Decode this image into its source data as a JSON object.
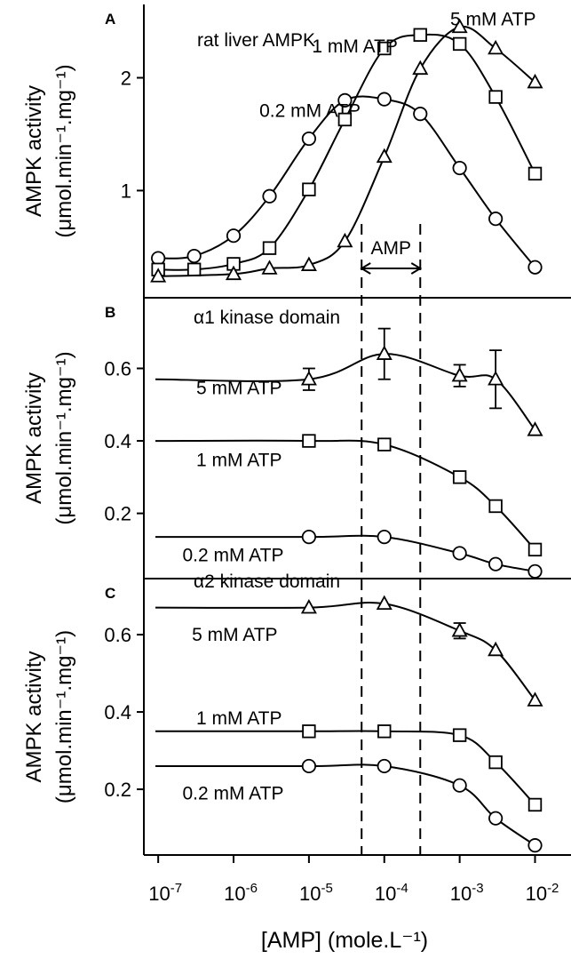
{
  "chart_data": [
    {
      "type": "scatter",
      "panel": "A",
      "title": "rat liver AMPK",
      "ylabel_line1": "AMPK activity",
      "ylabel_line2": "(μmol.min⁻¹.mg⁻¹)",
      "xscale": "log",
      "xlim": [
        7e-08,
        0.03
      ],
      "ylim": [
        0.05,
        2.65
      ],
      "yticks": [
        1,
        2
      ],
      "ytick_labels": [
        "1",
        "2"
      ],
      "amp_range_label": "AMP",
      "amp_range": [
        5e-05,
        0.0003
      ],
      "series": [
        {
          "name": "0.2 mM ATP",
          "marker": "circle",
          "x": [
            1e-07,
            3e-07,
            1e-06,
            3e-06,
            1e-05,
            3e-05,
            0.0001,
            0.0003,
            0.001,
            0.003,
            0.01
          ],
          "y": [
            0.4,
            0.42,
            0.6,
            0.95,
            1.46,
            1.8,
            1.81,
            1.68,
            1.2,
            0.75,
            0.32
          ],
          "label_anchor": [
            2.2e-06,
            1.71
          ]
        },
        {
          "name": "1 mM ATP",
          "marker": "square",
          "x": [
            1e-07,
            3e-07,
            1e-06,
            3e-06,
            1e-05,
            3e-05,
            0.0001,
            0.0003,
            0.001,
            0.003,
            0.01
          ],
          "y": [
            0.3,
            0.3,
            0.35,
            0.49,
            1.01,
            1.63,
            2.26,
            2.38,
            2.3,
            1.83,
            1.15
          ],
          "label_anchor": [
            1.1e-05,
            2.28
          ]
        },
        {
          "name": "5 mM ATP",
          "marker": "triangle",
          "x": [
            1e-07,
            1e-06,
            3e-06,
            1e-05,
            3e-05,
            0.0001,
            0.0003,
            0.001,
            0.003,
            0.01
          ],
          "y": [
            0.24,
            0.26,
            0.31,
            0.34,
            0.55,
            1.3,
            2.08,
            2.45,
            2.26,
            1.96
          ],
          "label_anchor": [
            0.00075,
            2.52
          ]
        }
      ]
    },
    {
      "type": "scatter",
      "panel": "B",
      "title": "α1 kinase domain",
      "ylabel_line1": "AMPK activity",
      "ylabel_line2": "(μmol.min⁻¹.mg⁻¹)",
      "xscale": "log",
      "xlim": [
        7e-08,
        0.03
      ],
      "ylim": [
        0.02,
        0.795
      ],
      "yticks": [
        0.2,
        0.4,
        0.6
      ],
      "ytick_labels": [
        "0.2",
        "0.4",
        "0.6"
      ],
      "series": [
        {
          "name": "5 mM ATP",
          "marker": "triangle",
          "x": [
            1e-05,
            0.0001,
            0.001,
            0.003,
            0.01
          ],
          "y": [
            0.57,
            0.64,
            0.58,
            0.57,
            0.43
          ],
          "err": [
            0.03,
            0.07,
            0.03,
            0.08,
            0
          ],
          "label_anchor": [
            3.2e-07,
            0.546
          ]
        },
        {
          "name": "1 mM ATP",
          "marker": "square",
          "x": [
            1e-05,
            0.0001,
            0.001,
            0.003,
            0.01
          ],
          "y": [
            0.4,
            0.39,
            0.3,
            0.22,
            0.1
          ],
          "label_anchor": [
            3.2e-07,
            0.348
          ]
        },
        {
          "name": "0.2 mM ATP",
          "marker": "circle",
          "x": [
            1e-05,
            0.0001,
            0.001,
            0.003,
            0.01
          ],
          "y": [
            0.135,
            0.135,
            0.09,
            0.06,
            0.04
          ],
          "label_anchor": [
            2.1e-07,
            0.085
          ]
        }
      ]
    },
    {
      "type": "scatter",
      "panel": "C",
      "title": "α2 kinase domain",
      "ylabel_line1": "AMPK activity",
      "ylabel_line2": "(μmol.min⁻¹.mg⁻¹)",
      "xlabel": "[AMP] (mole.L⁻¹)",
      "xscale": "log",
      "xlim": [
        7e-08,
        0.03
      ],
      "ylim": [
        0.03,
        0.745
      ],
      "yticks": [
        0.2,
        0.4,
        0.6
      ],
      "ytick_labels": [
        "0.2",
        "0.4",
        "0.6"
      ],
      "xticks": [
        1e-07,
        1e-06,
        1e-05,
        0.0001,
        0.001,
        0.01
      ],
      "xtick_base": "10",
      "xtick_exponents": [
        "-7",
        "-6",
        "-5",
        "-4",
        "-3",
        "-2"
      ],
      "series": [
        {
          "name": "5 mM ATP",
          "marker": "triangle",
          "x": [
            1e-05,
            0.0001,
            0.001,
            0.003,
            0.01
          ],
          "y": [
            0.67,
            0.68,
            0.61,
            0.56,
            0.43
          ],
          "err": [
            0,
            0,
            0.02,
            0,
            0
          ],
          "label_anchor": [
            2.8e-07,
            0.6
          ]
        },
        {
          "name": "1 mM ATP",
          "marker": "square",
          "x": [
            1e-05,
            0.0001,
            0.001,
            0.003,
            0.01
          ],
          "y": [
            0.35,
            0.35,
            0.34,
            0.27,
            0.16
          ],
          "label_anchor": [
            3.2e-07,
            0.384
          ]
        },
        {
          "name": "0.2 mM ATP",
          "marker": "circle",
          "x": [
            1e-05,
            0.0001,
            0.001,
            0.003,
            0.01
          ],
          "y": [
            0.26,
            0.26,
            0.21,
            0.125,
            0.055
          ],
          "label_anchor": [
            2.1e-07,
            0.19
          ]
        }
      ]
    }
  ]
}
